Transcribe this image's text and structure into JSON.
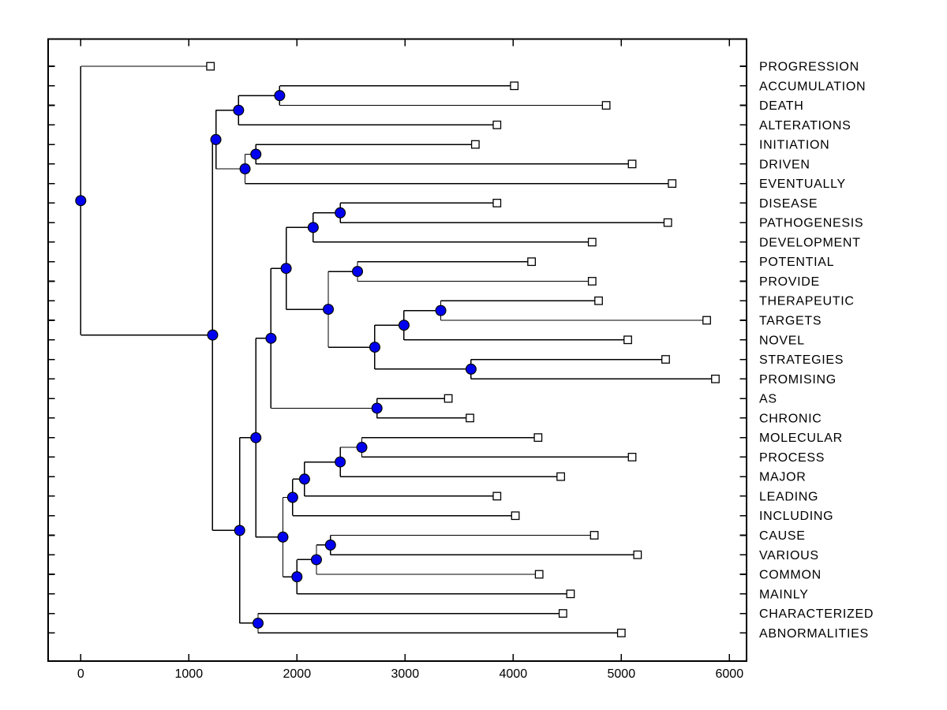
{
  "figure": {
    "background": "#ffffff",
    "description": "Horizontal dendrogram / hierarchical cluster tree of words, root at left, leaves at right marked with open squares, internal branch nodes marked with filled blue circles"
  },
  "chart_data": {
    "type": "dendrogram",
    "orientation": "horizontal",
    "title": "",
    "xlabel": "",
    "ylabel": "",
    "grid": false,
    "x_ticks": [
      0,
      1000,
      2000,
      3000,
      4000,
      5000,
      6000
    ],
    "xlim": [
      -300,
      6160
    ],
    "marker_internal": "filled-circle",
    "marker_leaf": "open-square",
    "colors": {
      "line": "#000000",
      "box": "#000000",
      "internal_node_fill": "#0000f0",
      "internal_node_stroke": "#000000",
      "leaf_marker_fill": "#ffffff",
      "leaf_marker_stroke": "#000000",
      "text": "#000000"
    },
    "leaves": [
      {
        "label": "PROGRESSION",
        "value": 1200
      },
      {
        "label": "ACCUMULATION",
        "value": 4010
      },
      {
        "label": "DEATH",
        "value": 4860
      },
      {
        "label": "ALTERATIONS",
        "value": 3850
      },
      {
        "label": "INITIATION",
        "value": 3650
      },
      {
        "label": "DRIVEN",
        "value": 5100
      },
      {
        "label": "EVENTUALLY",
        "value": 5470
      },
      {
        "label": "DISEASE",
        "value": 3850
      },
      {
        "label": "PATHOGENESIS",
        "value": 5430
      },
      {
        "label": "DEVELOPMENT",
        "value": 4730
      },
      {
        "label": "POTENTIAL",
        "value": 4170
      },
      {
        "label": "PROVIDE",
        "value": 4730
      },
      {
        "label": "THERAPEUTIC",
        "value": 4790
      },
      {
        "label": "TARGETS",
        "value": 5790
      },
      {
        "label": "NOVEL",
        "value": 5060
      },
      {
        "label": "STRATEGIES",
        "value": 5410
      },
      {
        "label": "PROMISING",
        "value": 5870
      },
      {
        "label": "AS",
        "value": 3400
      },
      {
        "label": "CHRONIC",
        "value": 3600
      },
      {
        "label": "MOLECULAR",
        "value": 4230
      },
      {
        "label": "PROCESS",
        "value": 5100
      },
      {
        "label": "MAJOR",
        "value": 4440
      },
      {
        "label": "LEADING",
        "value": 3850
      },
      {
        "label": "INCLUDING",
        "value": 4020
      },
      {
        "label": "CAUSE",
        "value": 4750
      },
      {
        "label": "VARIOUS",
        "value": 5150
      },
      {
        "label": "COMMON",
        "value": 4240
      },
      {
        "label": "MAINLY",
        "value": 4530
      },
      {
        "label": "CHARACTERIZED",
        "value": 4460
      },
      {
        "label": "ABNORMALITIES",
        "value": 5000
      }
    ],
    "internal_nodes": [
      {
        "id": "n1",
        "x": 1840,
        "children": [
          "ACCUMULATION",
          "DEATH"
        ]
      },
      {
        "id": "n2",
        "x": 1460,
        "children": [
          "n1",
          "ALTERATIONS"
        ]
      },
      {
        "id": "n3",
        "x": 1620,
        "children": [
          "INITIATION",
          "DRIVEN"
        ]
      },
      {
        "id": "n4",
        "x": 1520,
        "children": [
          "n3",
          "EVENTUALLY"
        ]
      },
      {
        "id": "n5",
        "x": 1250,
        "children": [
          "n2",
          "n4"
        ]
      },
      {
        "id": "n6",
        "x": 2400,
        "children": [
          "DISEASE",
          "PATHOGENESIS"
        ]
      },
      {
        "id": "n7",
        "x": 2150,
        "children": [
          "n6",
          "DEVELOPMENT"
        ]
      },
      {
        "id": "n8",
        "x": 2560,
        "children": [
          "POTENTIAL",
          "PROVIDE"
        ]
      },
      {
        "id": "n9",
        "x": 3330,
        "children": [
          "THERAPEUTIC",
          "TARGETS"
        ]
      },
      {
        "id": "n10",
        "x": 2990,
        "children": [
          "n9",
          "NOVEL"
        ]
      },
      {
        "id": "n11",
        "x": 3610,
        "children": [
          "STRATEGIES",
          "PROMISING"
        ]
      },
      {
        "id": "n12",
        "x": 2720,
        "children": [
          "n10",
          "n11"
        ]
      },
      {
        "id": "n13",
        "x": 2290,
        "children": [
          "n8",
          "n12"
        ]
      },
      {
        "id": "n14",
        "x": 1900,
        "children": [
          "n7",
          "n13"
        ]
      },
      {
        "id": "n15",
        "x": 2740,
        "children": [
          "AS",
          "CHRONIC"
        ]
      },
      {
        "id": "n16",
        "x": 1760,
        "children": [
          "n14",
          "n15"
        ]
      },
      {
        "id": "n17",
        "x": 2600,
        "children": [
          "MOLECULAR",
          "PROCESS"
        ]
      },
      {
        "id": "n18",
        "x": 2400,
        "children": [
          "n17",
          "MAJOR"
        ]
      },
      {
        "id": "n19",
        "x": 2070,
        "children": [
          "n18",
          "LEADING"
        ]
      },
      {
        "id": "n20",
        "x": 1960,
        "children": [
          "n19",
          "INCLUDING"
        ]
      },
      {
        "id": "n21",
        "x": 2310,
        "children": [
          "CAUSE",
          "VARIOUS"
        ]
      },
      {
        "id": "n22",
        "x": 2180,
        "children": [
          "n21",
          "COMMON"
        ]
      },
      {
        "id": "n23",
        "x": 2000,
        "children": [
          "n22",
          "MAINLY"
        ]
      },
      {
        "id": "n24",
        "x": 1870,
        "children": [
          "n20",
          "n23"
        ]
      },
      {
        "id": "n25",
        "x": 1620,
        "children": [
          "n16",
          "n24"
        ]
      },
      {
        "id": "n26",
        "x": 1640,
        "children": [
          "CHARACTERIZED",
          "ABNORMALITIES"
        ]
      },
      {
        "id": "n27",
        "x": 1470,
        "children": [
          "n25",
          "n26"
        ]
      },
      {
        "id": "n28",
        "x": 1220,
        "children": [
          "n5",
          "n27"
        ]
      },
      {
        "id": "n29",
        "x": 0,
        "children": [
          "PROGRESSION",
          "n28"
        ]
      }
    ],
    "root": "n29"
  }
}
